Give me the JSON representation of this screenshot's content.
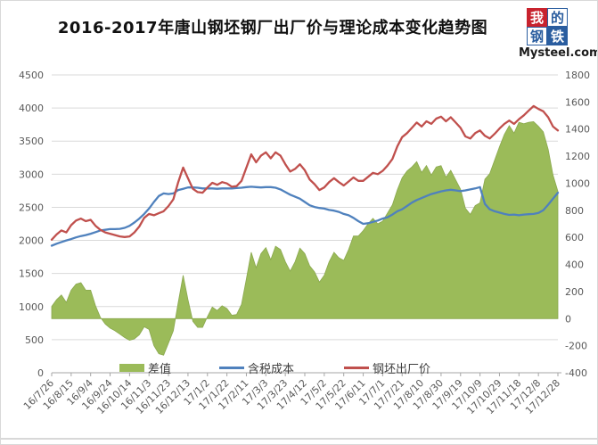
{
  "page": {
    "title": "2016-2017年唐山钢坯钢厂出厂价与理论成本变化趋势图",
    "logo": {
      "grid": [
        "我",
        "的",
        "钢",
        "铁"
      ],
      "domain": "Mysteel.com"
    }
  },
  "chart_data": {
    "type": "line",
    "title": "2016-2017年唐山钢坯钢厂出厂价与理论成本变化趋势图",
    "grid": true,
    "legend_position": "bottom",
    "left_axis": {
      "min": 0,
      "max": 4500,
      "step": 500
    },
    "right_axis": {
      "min": -400,
      "max": 1800,
      "step": 200
    },
    "x_tick_labels": [
      "16/7/26",
      "16/8/15",
      "16/9/4",
      "16/9/24",
      "16/10/14",
      "16/11/3",
      "16/11/23",
      "16/12/13",
      "17/1/2",
      "17/1/22",
      "17/2/11",
      "17/3/3",
      "17/3/23",
      "17/4/12",
      "17/5/2",
      "17/5/22",
      "17/6/11",
      "17/7/1",
      "17/7/21",
      "17/8/10",
      "17/8/30",
      "17/9/19",
      "17/10/9",
      "17/10/29",
      "17/11/18",
      "17/12/8",
      "17/12/28"
    ],
    "x": [
      "16/7/26",
      "16/7/31",
      "16/8/5",
      "16/8/10",
      "16/8/15",
      "16/8/20",
      "16/8/25",
      "16/8/30",
      "16/9/4",
      "16/9/9",
      "16/9/14",
      "16/9/19",
      "16/9/24",
      "16/9/29",
      "16/10/4",
      "16/10/9",
      "16/10/14",
      "16/10/19",
      "16/10/24",
      "16/10/29",
      "16/11/3",
      "16/11/8",
      "16/11/13",
      "16/11/18",
      "16/11/23",
      "16/11/28",
      "16/12/3",
      "16/12/8",
      "16/12/13",
      "16/12/18",
      "16/12/23",
      "16/12/28",
      "17/1/2",
      "17/1/7",
      "17/1/12",
      "17/1/17",
      "17/1/22",
      "17/1/27",
      "17/2/1",
      "17/2/6",
      "17/2/11",
      "17/2/16",
      "17/2/21",
      "17/2/26",
      "17/3/3",
      "17/3/8",
      "17/3/13",
      "17/3/18",
      "17/3/23",
      "17/3/28",
      "17/4/2",
      "17/4/7",
      "17/4/12",
      "17/4/17",
      "17/4/22",
      "17/4/27",
      "17/5/2",
      "17/5/7",
      "17/5/12",
      "17/5/17",
      "17/5/22",
      "17/5/27",
      "17/6/1",
      "17/6/6",
      "17/6/11",
      "17/6/16",
      "17/6/21",
      "17/6/26",
      "17/7/1",
      "17/7/6",
      "17/7/11",
      "17/7/16",
      "17/7/21",
      "17/7/26",
      "17/7/31",
      "17/8/5",
      "17/8/10",
      "17/8/15",
      "17/8/20",
      "17/8/25",
      "17/8/30",
      "17/9/4",
      "17/9/9",
      "17/9/14",
      "17/9/19",
      "17/9/24",
      "17/9/29",
      "17/10/4",
      "17/10/9",
      "17/10/14",
      "17/10/19",
      "17/10/24",
      "17/10/29",
      "17/11/3",
      "17/11/8",
      "17/11/13",
      "17/11/18",
      "17/11/23",
      "17/11/28",
      "17/12/3",
      "17/12/8",
      "17/12/13",
      "17/12/18",
      "17/12/23",
      "17/12/28"
    ],
    "series": [
      {
        "name": "差值",
        "type": "area",
        "axis": "right",
        "color": "#9bbb59",
        "values": [
          90,
          140,
          175,
          120,
          210,
          255,
          265,
          210,
          210,
          95,
          10,
          -40,
          -70,
          -90,
          -115,
          -140,
          -160,
          -150,
          -120,
          -60,
          -80,
          -200,
          -260,
          -270,
          -180,
          -90,
          120,
          320,
          140,
          -20,
          -65,
          -65,
          15,
          85,
          60,
          95,
          75,
          25,
          30,
          105,
          295,
          490,
          375,
          480,
          525,
          435,
          535,
          510,
          420,
          350,
          420,
          520,
          480,
          390,
          345,
          270,
          320,
          420,
          490,
          450,
          430,
          510,
          610,
          610,
          650,
          700,
          740,
          700,
          720,
          780,
          840,
          950,
          1040,
          1090,
          1120,
          1160,
          1080,
          1130,
          1060,
          1120,
          1130,
          1045,
          1095,
          1025,
          955,
          815,
          770,
          835,
          855,
          1030,
          1070,
          1170,
          1270,
          1360,
          1425,
          1370,
          1450,
          1440,
          1450,
          1455,
          1420,
          1380,
          1250,
          1060,
          940
        ]
      },
      {
        "name": "含税成本",
        "type": "line",
        "axis": "left",
        "color": "#4f81bd",
        "values": [
          1920,
          1950,
          1975,
          2000,
          2020,
          2045,
          2065,
          2080,
          2100,
          2125,
          2150,
          2160,
          2170,
          2170,
          2175,
          2190,
          2220,
          2270,
          2330,
          2400,
          2480,
          2580,
          2670,
          2710,
          2700,
          2710,
          2760,
          2780,
          2800,
          2800,
          2795,
          2785,
          2785,
          2785,
          2780,
          2785,
          2785,
          2785,
          2790,
          2795,
          2805,
          2810,
          2805,
          2800,
          2805,
          2805,
          2795,
          2770,
          2730,
          2690,
          2660,
          2630,
          2580,
          2530,
          2505,
          2490,
          2480,
          2460,
          2450,
          2430,
          2400,
          2380,
          2340,
          2290,
          2250,
          2260,
          2280,
          2300,
          2330,
          2350,
          2390,
          2440,
          2470,
          2520,
          2570,
          2610,
          2640,
          2670,
          2700,
          2720,
          2740,
          2755,
          2765,
          2755,
          2745,
          2755,
          2770,
          2785,
          2805,
          2550,
          2470,
          2440,
          2420,
          2400,
          2385,
          2390,
          2380,
          2390,
          2395,
          2400,
          2415,
          2455,
          2540,
          2630,
          2720
        ]
      },
      {
        "name": "钢坯出厂价",
        "type": "line",
        "axis": "left",
        "color": "#c0504d",
        "values": [
          2010,
          2090,
          2150,
          2120,
          2230,
          2300,
          2330,
          2290,
          2310,
          2220,
          2160,
          2120,
          2100,
          2080,
          2060,
          2050,
          2060,
          2120,
          2210,
          2340,
          2400,
          2380,
          2410,
          2440,
          2520,
          2620,
          2880,
          3100,
          2940,
          2780,
          2730,
          2720,
          2800,
          2870,
          2840,
          2880,
          2860,
          2810,
          2820,
          2900,
          3100,
          3300,
          3180,
          3280,
          3330,
          3240,
          3330,
          3280,
          3150,
          3040,
          3080,
          3150,
          3060,
          2920,
          2850,
          2760,
          2800,
          2880,
          2940,
          2880,
          2830,
          2890,
          2950,
          2900,
          2900,
          2960,
          3020,
          3000,
          3050,
          3130,
          3230,
          3420,
          3560,
          3620,
          3700,
          3780,
          3720,
          3800,
          3760,
          3840,
          3870,
          3800,
          3860,
          3780,
          3700,
          3570,
          3540,
          3620,
          3660,
          3580,
          3540,
          3610,
          3690,
          3760,
          3810,
          3760,
          3830,
          3890,
          3960,
          4030,
          3985,
          3950,
          3860,
          3720,
          3660
        ]
      }
    ]
  },
  "colors": {
    "grid": "#d9d9d9",
    "axis": "#a6a6a6",
    "tick_text": "#595959"
  }
}
